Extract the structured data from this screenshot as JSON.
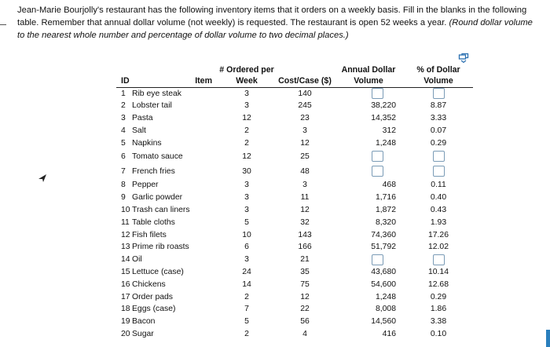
{
  "prompt": {
    "line1": "Jean-Marie Bourjolly's restaurant has the following inventory items that it orders on a weekly basis. Fill in the blanks in the following",
    "line2_normal": "table. Remember that annual dollar volume (not weekly) is requested. The restaurant is open 52 weeks a year. ",
    "line2_italic": "(Round dollar volume",
    "line3_italic": "to the nearest whole number and percentage of dollar volume to two decimal places.)"
  },
  "table": {
    "headers": {
      "id": "ID",
      "item": "Item",
      "ordered": "# Ordered per Week",
      "cost": "Cost/Case ($)",
      "annual": "Annual Dollar Volume",
      "pct": "% of Dollar Volume"
    },
    "rows": [
      {
        "id": "1",
        "item": "Rib eye steak",
        "ordered": "3",
        "cost": "140",
        "annual": "",
        "pct": ""
      },
      {
        "id": "2",
        "item": "Lobster tail",
        "ordered": "3",
        "cost": "245",
        "annual": "38,220",
        "pct": "8.87"
      },
      {
        "id": "3",
        "item": "Pasta",
        "ordered": "12",
        "cost": "23",
        "annual": "14,352",
        "pct": "3.33"
      },
      {
        "id": "4",
        "item": "Salt",
        "ordered": "2",
        "cost": "3",
        "annual": "312",
        "pct": "0.07"
      },
      {
        "id": "5",
        "item": "Napkins",
        "ordered": "2",
        "cost": "12",
        "annual": "1,248",
        "pct": "0.29"
      },
      {
        "id": "6",
        "item": "Tomato sauce",
        "ordered": "12",
        "cost": "25",
        "annual": "",
        "pct": ""
      },
      {
        "id": "7",
        "item": "French fries",
        "ordered": "30",
        "cost": "48",
        "annual": "",
        "pct": ""
      },
      {
        "id": "8",
        "item": "Pepper",
        "ordered": "3",
        "cost": "3",
        "annual": "468",
        "pct": "0.11"
      },
      {
        "id": "9",
        "item": "Garlic powder",
        "ordered": "3",
        "cost": "11",
        "annual": "1,716",
        "pct": "0.40"
      },
      {
        "id": "10",
        "item": "Trash can liners",
        "ordered": "3",
        "cost": "12",
        "annual": "1,872",
        "pct": "0.43"
      },
      {
        "id": "11",
        "item": "Table cloths",
        "ordered": "5",
        "cost": "32",
        "annual": "8,320",
        "pct": "1.93"
      },
      {
        "id": "12",
        "item": "Fish filets",
        "ordered": "10",
        "cost": "143",
        "annual": "74,360",
        "pct": "17.26"
      },
      {
        "id": "13",
        "item": "Prime rib roasts",
        "ordered": "6",
        "cost": "166",
        "annual": "51,792",
        "pct": "12.02"
      },
      {
        "id": "14",
        "item": "Oil",
        "ordered": "3",
        "cost": "21",
        "annual": "",
        "pct": ""
      },
      {
        "id": "15",
        "item": "Lettuce (case)",
        "ordered": "24",
        "cost": "35",
        "annual": "43,680",
        "pct": "10.14"
      },
      {
        "id": "16",
        "item": "Chickens",
        "ordered": "14",
        "cost": "75",
        "annual": "54,600",
        "pct": "12.68"
      },
      {
        "id": "17",
        "item": "Order pads",
        "ordered": "2",
        "cost": "12",
        "annual": "1,248",
        "pct": "0.29"
      },
      {
        "id": "18",
        "item": "Eggs (case)",
        "ordered": "7",
        "cost": "22",
        "annual": "8,008",
        "pct": "1.86"
      },
      {
        "id": "19",
        "item": "Bacon",
        "ordered": "5",
        "cost": "56",
        "annual": "14,560",
        "pct": "3.38"
      },
      {
        "id": "20",
        "item": "Sugar",
        "ordered": "2",
        "cost": "4",
        "annual": "416",
        "pct": "0.10"
      }
    ]
  },
  "icons": {
    "copy": "copy-table-icon",
    "cursor": "arrow-cursor-icon"
  }
}
